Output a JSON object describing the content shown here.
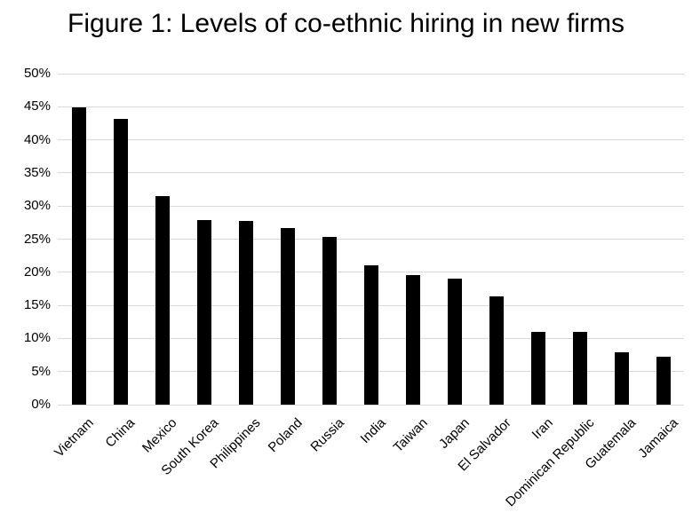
{
  "figure": {
    "title": "Figure 1: Levels of co-ethnic hiring in new firms"
  },
  "colors": {
    "bar": "#000000",
    "gridline": "#d9d9d9",
    "text": "#000000",
    "background": "#ffffff"
  },
  "chart_data": {
    "type": "bar",
    "title": "Figure 1: Levels of co-ethnic hiring in new firms",
    "xlabel": "",
    "ylabel": "",
    "categories": [
      "Vietnam",
      "China",
      "Mexico",
      "South Korea",
      "Philippines",
      "Poland",
      "Russia",
      "India",
      "Taiwan",
      "Japan",
      "El Salvador",
      "Iran",
      "Dominican Republic",
      "Guatemala",
      "Jamaica"
    ],
    "values": [
      44.9,
      43.2,
      31.5,
      27.9,
      27.7,
      26.7,
      25.4,
      21.1,
      19.6,
      19.0,
      16.4,
      11.0,
      11.0,
      7.9,
      7.2
    ],
    "value_unit": "%",
    "ylim": [
      0,
      50
    ],
    "ytick_values": [
      0,
      5,
      10,
      15,
      20,
      25,
      30,
      35,
      40,
      45,
      50
    ],
    "ytick_labels": [
      "0%",
      "5%",
      "10%",
      "15%",
      "20%",
      "25%",
      "30%",
      "35%",
      "40%",
      "45%",
      "50%"
    ],
    "grid": true,
    "legend_position": "none",
    "x_label_rotation_deg": 45,
    "bar_color": "#000000"
  }
}
